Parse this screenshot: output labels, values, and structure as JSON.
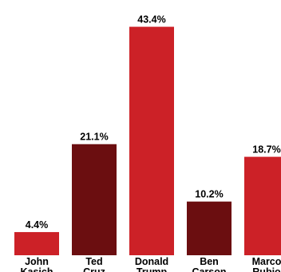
{
  "chart_data": {
    "type": "bar",
    "title": "",
    "xlabel": "",
    "ylabel": "",
    "ylim": [
      0,
      48
    ],
    "grid": false,
    "categories": [
      [
        "John",
        "Kasich"
      ],
      [
        "Ted",
        "Cruz"
      ],
      [
        "Donald",
        "Trump"
      ],
      [
        "Ben",
        "Carson"
      ],
      [
        "Marco",
        "Rubio"
      ]
    ],
    "values": [
      4.4,
      21.1,
      43.4,
      10.2,
      18.7
    ],
    "value_labels": [
      "4.4%",
      "21.1%",
      "43.4%",
      "10.2%",
      "18.7%"
    ],
    "colors": [
      "#cc2127",
      "#6b0e10",
      "#cc2127",
      "#6b0e10",
      "#cc2127"
    ]
  }
}
